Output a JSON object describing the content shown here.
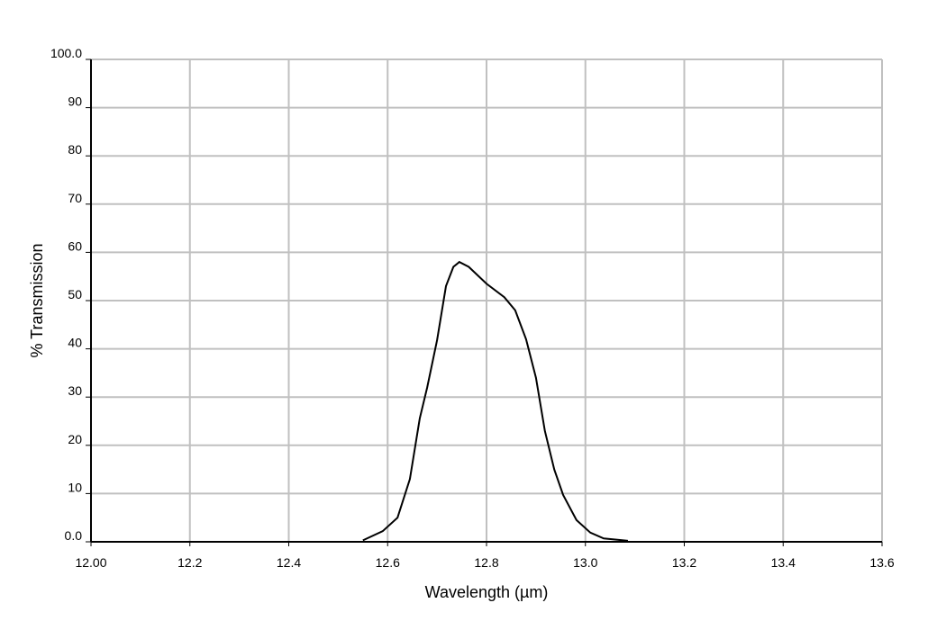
{
  "chart_data": {
    "type": "line",
    "xlabel": "Wavelength (µm)",
    "ylabel": "% Transmission",
    "x": [
      12.55,
      12.59,
      12.62,
      12.645,
      12.665,
      12.68,
      12.7,
      12.718,
      12.733,
      12.745,
      12.764,
      12.8,
      12.836,
      12.858,
      12.88,
      12.9,
      12.918,
      12.937,
      12.955,
      12.982,
      13.01,
      13.037,
      13.086
    ],
    "series": [
      {
        "name": "Transmission",
        "color": "#000000",
        "values": [
          0.3,
          2.2,
          5,
          13,
          25.6,
          32,
          41.8,
          53,
          57,
          58,
          57,
          53.5,
          50.7,
          48,
          42,
          34,
          23,
          15,
          9.7,
          4.5,
          1.9,
          0.7,
          0.2
        ]
      }
    ],
    "xlim": [
      12,
      13.6
    ],
    "xticks": [
      {
        "value": 12,
        "label": "12.00"
      },
      12.2,
      12.4,
      12.6,
      12.8,
      {
        "value": 13,
        "label": "13.0"
      },
      13.2,
      13.4,
      13.6
    ],
    "ylim": [
      0,
      100
    ],
    "yticks": [
      {
        "value": 0,
        "label": "0.0"
      },
      10,
      20,
      30,
      40,
      50,
      60,
      70,
      80,
      90,
      {
        "value": 100,
        "label": "100.0"
      }
    ],
    "grid": true
  }
}
